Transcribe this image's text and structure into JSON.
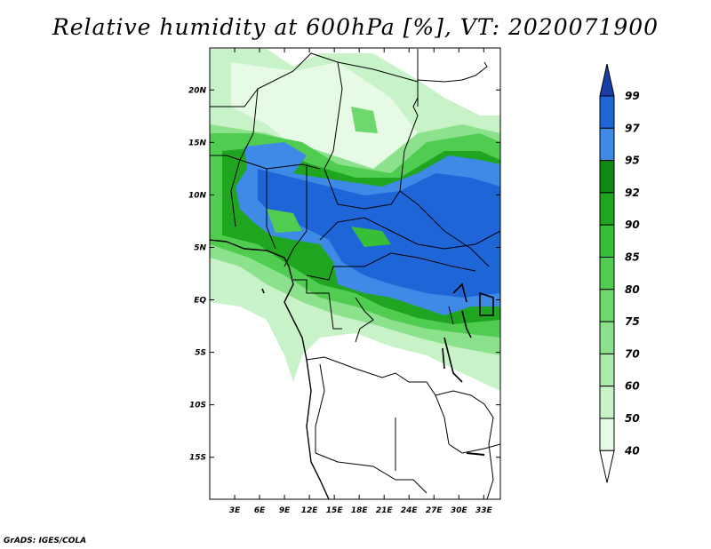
{
  "title": "Relative humidity at 600hPa [%], VT: 2020071900",
  "credit": "GrADS: IGES/COLA",
  "map": {
    "lat_ticks": [
      "20N",
      "15N",
      "10N",
      "5N",
      "EQ",
      "5S",
      "10S",
      "15S"
    ],
    "lat_values": [
      20,
      15,
      10,
      5,
      0,
      -5,
      -10,
      -15
    ],
    "lon_ticks": [
      "3E",
      "6E",
      "9E",
      "12E",
      "15E",
      "18E",
      "21E",
      "24E",
      "27E",
      "30E",
      "33E"
    ],
    "lon_values": [
      3,
      6,
      9,
      12,
      15,
      18,
      21,
      24,
      27,
      30,
      33
    ],
    "lon_range": [
      0,
      35
    ],
    "lat_range": [
      -19,
      24
    ]
  },
  "colorbar": {
    "labels": [
      "99",
      "97",
      "95",
      "92",
      "90",
      "85",
      "80",
      "75",
      "70",
      "60",
      "50",
      "40"
    ],
    "colors": {
      "lt40": "#ffffff",
      "40_50": "#e6fae6",
      "50_60": "#c8f2c8",
      "60_70": "#aaeaaa",
      "70_75": "#8ce18c",
      "75_80": "#6ed86e",
      "80_85": "#50cd50",
      "85_90": "#37bf37",
      "90_92": "#1fa51f",
      "92_95": "#118811",
      "95_97": "#3e8ae6",
      "97_99": "#1e66d8",
      "gt99": "#1a3ea8"
    }
  }
}
